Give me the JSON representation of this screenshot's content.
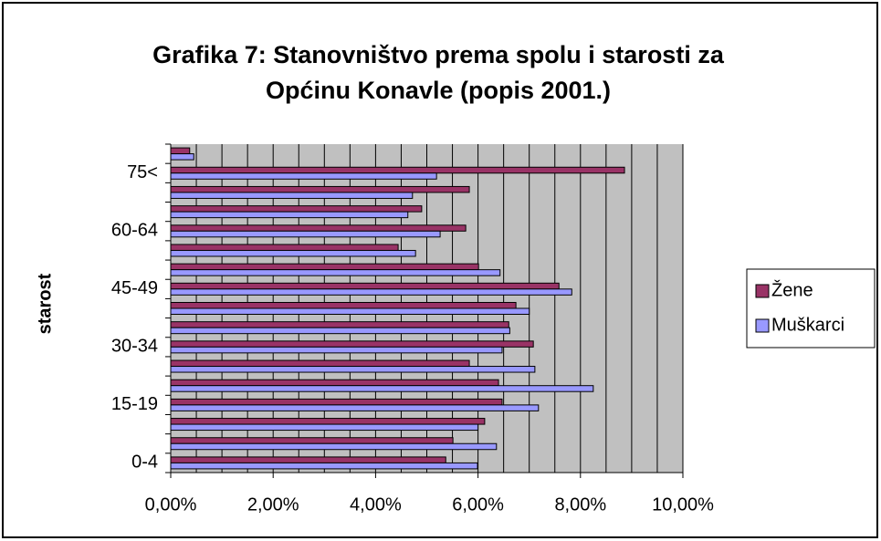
{
  "chart_data": {
    "type": "hbar",
    "title": [
      "Grafika 7: Stanovništvo prema spolu i starosti za",
      "Općinu Konavle (popis 2001.)"
    ],
    "y_label": "starost",
    "categories": [
      "0-4",
      null,
      null,
      "15-19",
      null,
      null,
      "30-34",
      null,
      null,
      "45-49",
      null,
      null,
      "60-64",
      null,
      null,
      "75<",
      null
    ],
    "series": [
      {
        "name": "Žene",
        "color": "#993366",
        "values": [
          5.37,
          5.51,
          6.13,
          6.47,
          6.4,
          5.83,
          7.08,
          6.6,
          6.74,
          7.58,
          6.01,
          4.44,
          5.76,
          4.9,
          5.83,
          8.86,
          0.37
        ]
      },
      {
        "name": "Muškarci",
        "color": "#9999ff",
        "values": [
          5.99,
          6.36,
          6.0,
          7.18,
          8.25,
          7.11,
          6.47,
          6.62,
          7.0,
          7.83,
          6.43,
          4.78,
          5.26,
          4.63,
          4.72,
          5.19,
          0.45
        ]
      }
    ],
    "xlim": [
      0,
      10
    ],
    "xticks": [
      {
        "value": 0,
        "label": "0,00%"
      },
      {
        "value": 2,
        "label": "2,00%"
      },
      {
        "value": 4,
        "label": "4,00%"
      },
      {
        "value": 6,
        "label": "6,00%"
      },
      {
        "value": 8,
        "label": "8,00%"
      },
      {
        "value": 10,
        "label": "10,00%"
      }
    ],
    "grid": true,
    "legend": "right"
  }
}
